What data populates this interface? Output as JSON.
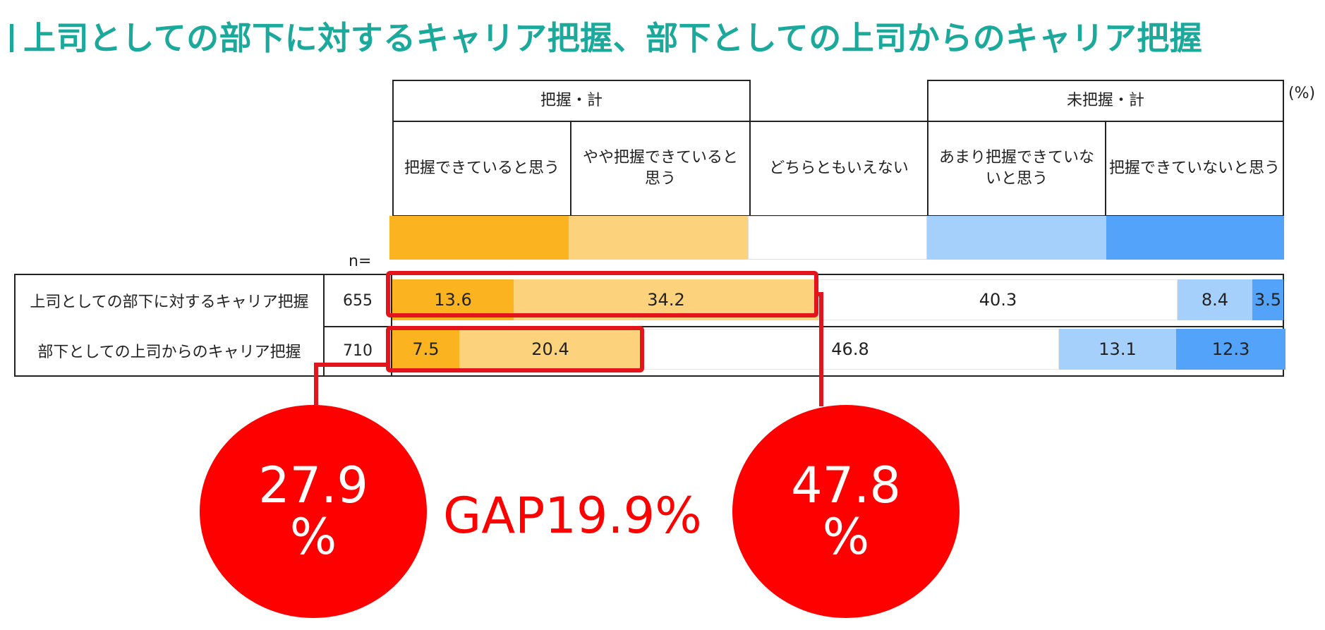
{
  "title": "上司としての部下に対するキャリア把握、部下としての上司からのキャリア把握",
  "unit": "(%)",
  "groups": {
    "grasped_total": "把握・計",
    "not_grasped_total": "未把握・計"
  },
  "n_label": "n=",
  "gap_label": "GAP19.9%",
  "callouts": [
    {
      "value": "27.9",
      "unit": "%"
    },
    {
      "value": "47.8",
      "unit": "%"
    }
  ],
  "chart_data": {
    "type": "bar",
    "orientation": "horizontal",
    "stacked": true,
    "title": "上司としての部下に対するキャリア把握、部下としての上司からのキャリア把握",
    "unit": "(%)",
    "legend_position": "top",
    "groups": [
      {
        "label": "把握・計",
        "categories": [
          "把握できていると思う",
          "やや把握できていると思う"
        ]
      },
      {
        "label": "未把握・計",
        "categories": [
          "あまり把握できていないと思う",
          "把握できていないと思う"
        ]
      }
    ],
    "categories": [
      "把握できていると思う",
      "やや把握できていると思う",
      "どちらともいえない",
      "あまり把握できていないと思う",
      "把握できていないと思う"
    ],
    "colors": [
      "#fbb420",
      "#fdd27c",
      "#ffffff",
      "#a6d0fc",
      "#52a3f9"
    ],
    "rows": [
      {
        "label": "上司としての部下に対するキャリア把握",
        "n": "655",
        "values": [
          13.6,
          34.2,
          40.3,
          8.4,
          3.5
        ]
      },
      {
        "label": "部下としての上司からのキャリア把握",
        "n": "710",
        "values": [
          7.5,
          20.4,
          46.8,
          13.1,
          12.3
        ]
      }
    ],
    "xlim": [
      0,
      100
    ]
  }
}
